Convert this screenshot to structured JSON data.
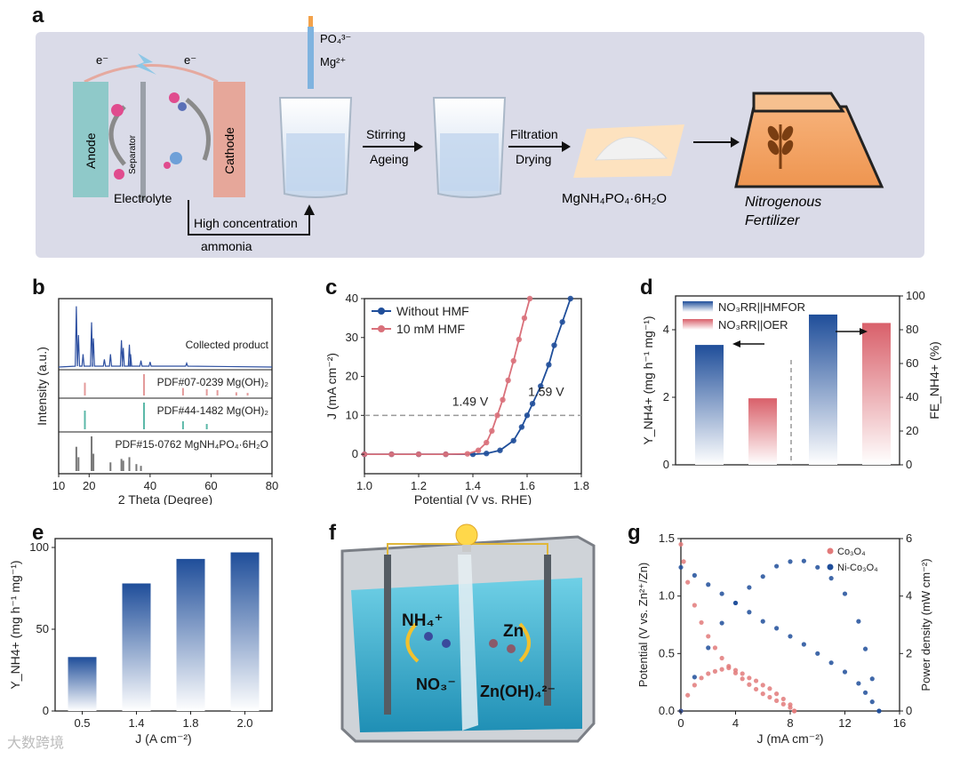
{
  "figure": {
    "panel_labels": [
      "a",
      "b",
      "c",
      "d",
      "e",
      "f",
      "g"
    ],
    "watermark": "大数跨境"
  },
  "panel_a": {
    "electron_left": "e⁻",
    "electron_right": "e⁻",
    "anode": "Anode",
    "separator": "Separator",
    "cathode": "Cathode",
    "electrolyte": "Electrolyte",
    "high_conc": "High concentration",
    "ammonia": "ammonia",
    "reagent_po4": "PO₄³⁻",
    "reagent_mg": "Mg²⁺",
    "step1_top": "Stirring",
    "step1_bottom": "Ageing",
    "step2_top": "Filtration",
    "step2_bottom": "Drying",
    "product": "MgNH₄PO₄·6H₂O",
    "fertilizer_line1": "Nitrogenous",
    "fertilizer_line2": "Fertilizer",
    "colors": {
      "background": "#dadbe8",
      "anode": "#8fc9c9",
      "cathode": "#e6a79a",
      "fertilizer_bag": "#f3a261"
    }
  },
  "panel_b": {
    "chart_data": {
      "type": "line",
      "xlabel": "2 Theta (Degree)",
      "ylabel": "Intensity (a.u.)",
      "xlim": [
        10,
        80
      ],
      "xticks": [
        10,
        20,
        40,
        60,
        80
      ],
      "traces": [
        {
          "name": "Collected product",
          "color": "#2d4fa0",
          "peaks": [
            [
              15.8,
              0.95
            ],
            [
              16.5,
              0.5
            ],
            [
              18.0,
              0.2
            ],
            [
              20.8,
              0.7
            ],
            [
              21.4,
              0.45
            ],
            [
              25.0,
              0.12
            ],
            [
              27.0,
              0.2
            ],
            [
              30.6,
              0.42
            ],
            [
              31.2,
              0.3
            ],
            [
              33.2,
              0.35
            ],
            [
              33.6,
              0.2
            ],
            [
              37.0,
              0.1
            ],
            [
              40.0,
              0.08
            ],
            [
              52.0,
              0.06
            ]
          ]
        },
        {
          "name": "PDF#07-0239 Mg(OH)₂",
          "color": "#e39a9a",
          "sticks": [
            [
              18.6,
              0.6
            ],
            [
              38.0,
              1.0
            ],
            [
              50.8,
              0.35
            ],
            [
              58.6,
              0.3
            ],
            [
              62.1,
              0.25
            ],
            [
              68.3,
              0.15
            ],
            [
              72.0,
              0.12
            ]
          ]
        },
        {
          "name": "PDF#44-1482 Mg(OH)₂",
          "color": "#5bb8a8",
          "sticks": [
            [
              18.6,
              0.7
            ],
            [
              38.0,
              1.0
            ],
            [
              50.8,
              0.3
            ],
            [
              58.6,
              0.2
            ]
          ]
        },
        {
          "name": "PDF#15-0762 MgNH₄PO₄·6H₂O",
          "color": "#777777",
          "sticks": [
            [
              15.8,
              0.7
            ],
            [
              16.5,
              0.4
            ],
            [
              20.8,
              1.0
            ],
            [
              21.4,
              0.5
            ],
            [
              27.0,
              0.25
            ],
            [
              30.6,
              0.35
            ],
            [
              31.2,
              0.3
            ],
            [
              33.2,
              0.4
            ],
            [
              35.5,
              0.2
            ],
            [
              37.0,
              0.15
            ]
          ]
        }
      ]
    }
  },
  "panel_c": {
    "chart_data": {
      "type": "line",
      "xlabel": "Potential (V vs. RHE)",
      "ylabel": "J (mA cm⁻²)",
      "xlim": [
        1.0,
        1.8
      ],
      "ylim": [
        -5,
        40
      ],
      "xticks": [
        1.0,
        1.2,
        1.4,
        1.6,
        1.8
      ],
      "yticks": [
        0,
        10,
        20,
        30,
        40
      ],
      "reference_line": 10,
      "annotations": [
        "1.49 V",
        "1.59 V"
      ],
      "legend_position": "top-left",
      "series": [
        {
          "name": "Without HMF",
          "color": "#1f4e9a",
          "x": [
            1.0,
            1.1,
            1.2,
            1.3,
            1.4,
            1.45,
            1.5,
            1.55,
            1.58,
            1.6,
            1.62,
            1.65,
            1.68,
            1.7,
            1.73,
            1.76
          ],
          "y": [
            0,
            0,
            0,
            0,
            0,
            0.2,
            1.0,
            3.5,
            7.0,
            10.0,
            13.0,
            17.5,
            23.0,
            28.0,
            34.0,
            40.0
          ]
        },
        {
          "name": "10 mM HMF",
          "color": "#d9707a",
          "x": [
            1.0,
            1.1,
            1.2,
            1.3,
            1.38,
            1.42,
            1.45,
            1.47,
            1.49,
            1.51,
            1.53,
            1.55,
            1.57,
            1.59,
            1.61
          ],
          "y": [
            0,
            0,
            0,
            0,
            0.1,
            1.0,
            3.0,
            6.0,
            10.0,
            14.0,
            19.0,
            24.0,
            29.5,
            35.0,
            40.0
          ]
        }
      ]
    }
  },
  "panel_d": {
    "chart_data": {
      "type": "bar",
      "ylabel_left": "Y_NH4+ (mg h⁻¹ mg⁻¹)",
      "ylabel_right": "FE_NH4+ (%)",
      "ylim_left": [
        0,
        5
      ],
      "ylim_right": [
        0,
        100
      ],
      "yticks_left": [
        0,
        2,
        4
      ],
      "yticks_right": [
        0,
        20,
        40,
        60,
        80,
        100
      ],
      "legend": [
        "NO₃RR||HMFOR",
        "NO₃RR||OER"
      ],
      "legend_position": "top",
      "yield_values": {
        "NO₃RR||HMFOR": 3.55,
        "NO₃RR||OER": 1.97
      },
      "fe_values": {
        "NO₃RR||HMFOR": 89,
        "NO₃RR||OER": 84
      },
      "colors": {
        "NO₃RR||HMFOR": "#1f4e9a",
        "NO₃RR||OER": "#d9606a"
      }
    }
  },
  "panel_e": {
    "chart_data": {
      "type": "bar",
      "categories": [
        "0.5",
        "1.4",
        "1.8",
        "2.0"
      ],
      "values": [
        33,
        78,
        93,
        97
      ],
      "xlabel": "J (A cm⁻²)",
      "ylabel": "Y_NH4+ (mg h⁻¹ mg⁻¹)",
      "ylim": [
        0,
        100
      ],
      "yticks": [
        0,
        50,
        100
      ],
      "color": "#1f4e9a"
    }
  },
  "panel_f": {
    "nh4": "NH₄⁺",
    "no3": "NO₃⁻",
    "zn": "Zn",
    "znoh4": "Zn(OH)₄²⁻",
    "colors": {
      "water": "#3fb3d1",
      "lamp": "#ffd84a"
    }
  },
  "panel_g": {
    "chart_data": {
      "type": "scatter",
      "xlabel": "J (mA cm⁻²)",
      "ylabel_left": "Potential (V vs. Zn²⁺/Zn)",
      "ylabel_right": "Power density (mW cm⁻²)",
      "xlim": [
        0,
        16
      ],
      "ylim_left": [
        0,
        1.5
      ],
      "ylim_right": [
        0,
        6
      ],
      "xticks": [
        0,
        4,
        8,
        12,
        16
      ],
      "yticks_left": [
        0.0,
        0.5,
        1.0,
        1.5
      ],
      "yticks_right": [
        0,
        2,
        4,
        6
      ],
      "legend": [
        "Co₃O₄",
        "Ni-Co₃O₄"
      ],
      "legend_position": "top-right",
      "series": [
        {
          "name": "Co₃O₄ potential",
          "color": "#e27a7a",
          "axis": "left",
          "x": [
            0,
            0.2,
            0.5,
            1,
            1.5,
            2,
            2.5,
            3,
            3.5,
            4,
            4.5,
            5,
            5.5,
            6,
            6.5,
            7,
            7.5,
            8,
            8.3
          ],
          "y": [
            1.45,
            1.3,
            1.12,
            0.92,
            0.77,
            0.65,
            0.55,
            0.46,
            0.39,
            0.33,
            0.28,
            0.23,
            0.19,
            0.15,
            0.12,
            0.09,
            0.06,
            0.03,
            0.0
          ]
        },
        {
          "name": "Co₃O₄ power",
          "color": "#e27a7a",
          "axis": "right",
          "x": [
            0,
            0.5,
            1,
            1.5,
            2,
            2.5,
            3,
            3.5,
            4,
            4.5,
            5,
            5.5,
            6,
            6.5,
            7,
            7.5,
            8,
            8.3
          ],
          "y": [
            0,
            0.55,
            0.9,
            1.15,
            1.3,
            1.38,
            1.45,
            1.5,
            1.42,
            1.3,
            1.15,
            1.05,
            0.9,
            0.78,
            0.6,
            0.42,
            0.22,
            0.0
          ]
        },
        {
          "name": "Ni-Co₃O₄ potential",
          "color": "#1f4e9a",
          "axis": "left",
          "x": [
            0,
            1,
            2,
            3,
            4,
            5,
            6,
            7,
            8,
            9,
            10,
            11,
            12,
            13,
            13.5,
            14,
            14.5
          ],
          "y": [
            1.25,
            1.18,
            1.1,
            1.02,
            0.94,
            0.86,
            0.78,
            0.72,
            0.65,
            0.58,
            0.5,
            0.42,
            0.34,
            0.24,
            0.16,
            0.08,
            0.0
          ]
        },
        {
          "name": "Ni-Co₃O₄ power",
          "color": "#1f4e9a",
          "axis": "right",
          "x": [
            0,
            1,
            2,
            3,
            4,
            5,
            6,
            7,
            8,
            9,
            10,
            11,
            12,
            13,
            13.5,
            14,
            14.5
          ],
          "y": [
            0,
            1.18,
            2.2,
            3.06,
            3.76,
            4.3,
            4.68,
            5.04,
            5.2,
            5.22,
            5.0,
            4.62,
            4.08,
            3.12,
            2.16,
            1.12,
            0.0
          ]
        }
      ]
    }
  }
}
